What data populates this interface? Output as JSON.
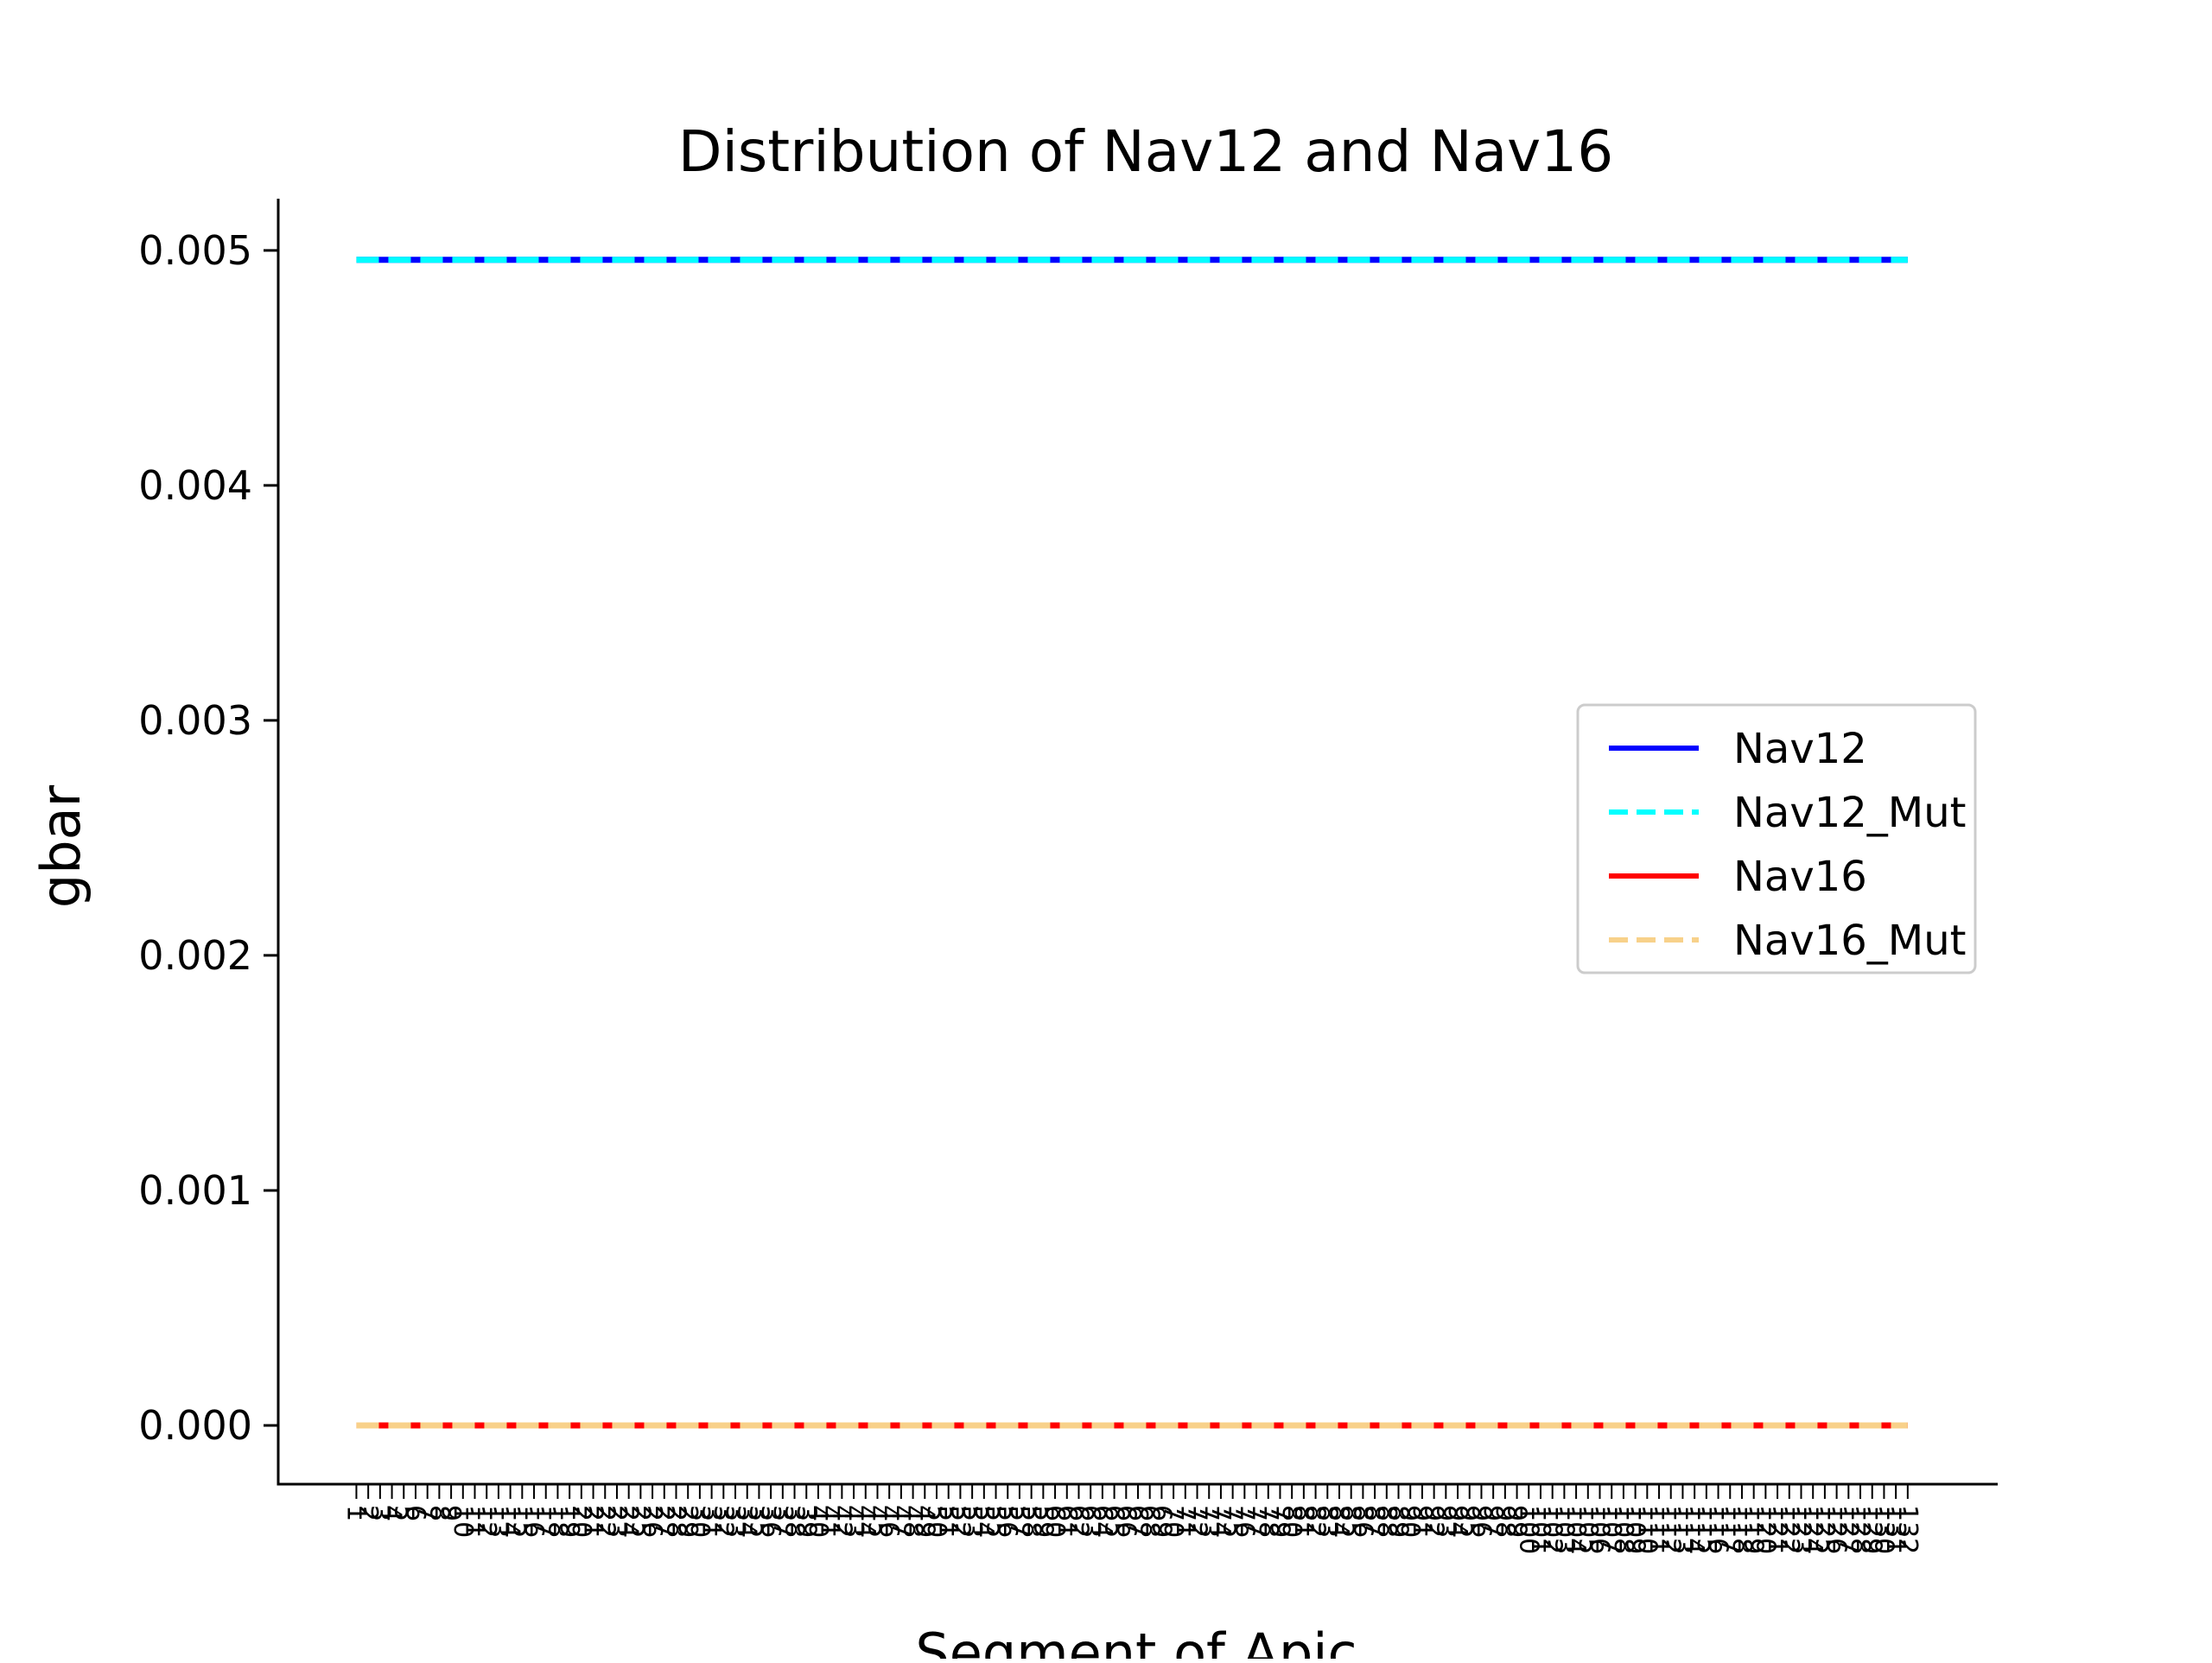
{
  "chart_data": {
    "type": "line",
    "title": "Distribution of Nav12 and Nav16",
    "xlabel": "Segment of Apic",
    "ylabel": "gbar",
    "ylim": [
      -0.00025,
      0.00522
    ],
    "xlim": [
      -6.6,
      138.6
    ],
    "yticks": [
      "0.000",
      "0.001",
      "0.002",
      "0.003",
      "0.004",
      "0.005"
    ],
    "ytick_values": [
      0,
      0.001,
      0.002,
      0.003,
      0.004,
      0.005
    ],
    "x_categories": [
      "1",
      "2",
      "3",
      "4",
      "5",
      "6",
      "7",
      "8",
      "9",
      "10",
      "11",
      "12",
      "13",
      "14",
      "15",
      "16",
      "17",
      "18",
      "19",
      "20",
      "21",
      "22",
      "23",
      "24",
      "25",
      "26",
      "27",
      "28",
      "29",
      "30",
      "31",
      "32",
      "33",
      "34",
      "35",
      "36",
      "37",
      "38",
      "39",
      "40",
      "41",
      "42",
      "43",
      "44",
      "45",
      "46",
      "47",
      "48",
      "49",
      "50",
      "51",
      "52",
      "53",
      "54",
      "55",
      "56",
      "57",
      "58",
      "59",
      "60",
      "61",
      "62",
      "63",
      "64",
      "65",
      "66",
      "67",
      "68",
      "69",
      "70",
      "71",
      "72",
      "73",
      "74",
      "75",
      "76",
      "77",
      "78",
      "79",
      "80",
      "81",
      "82",
      "83",
      "84",
      "85",
      "86",
      "87",
      "88",
      "89",
      "90",
      "91",
      "92",
      "93",
      "94",
      "95",
      "96",
      "97",
      "98",
      "99",
      "100",
      "101",
      "102",
      "103",
      "104",
      "105",
      "106",
      "107",
      "108",
      "109",
      "110",
      "111",
      "112",
      "113",
      "114",
      "115",
      "116",
      "117",
      "118",
      "119",
      "120",
      "121",
      "122",
      "123",
      "124",
      "125",
      "126",
      "127",
      "128",
      "129",
      "130",
      "131",
      "132"
    ],
    "grid": false,
    "legend_position": "center-right",
    "series": [
      {
        "name": "Nav12",
        "color": "#0000ff",
        "style": "solid",
        "constant_value": 0.00496
      },
      {
        "name": "Nav12_Mut",
        "color": "#00ffff",
        "style": "dashed",
        "constant_value": 0.00496
      },
      {
        "name": "Nav16",
        "color": "#ff0000",
        "style": "solid",
        "constant_value": 0.0
      },
      {
        "name": "Nav16_Mut",
        "color": "#f8d18a",
        "style": "dashed",
        "constant_value": 0.0
      }
    ]
  }
}
